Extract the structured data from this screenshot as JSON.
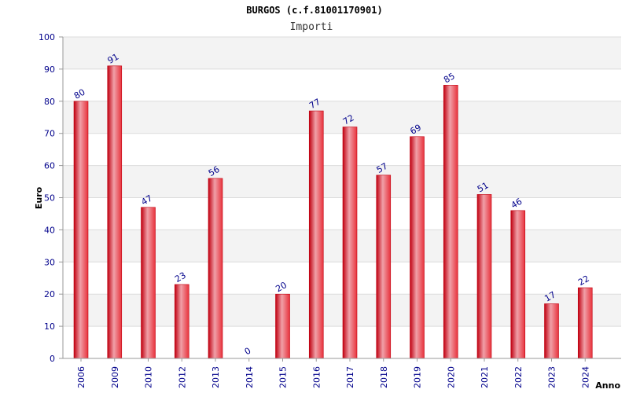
{
  "colors": {
    "bar_edge": "#c00010",
    "bar_light": "#f0a0a8",
    "bar_mid": "#e8323c",
    "tick_text": "#00008b",
    "band": "#f3f3f3"
  },
  "chart_data": {
    "type": "bar",
    "title": "BURGOS (c.f.81001170901)",
    "subtitle": "Importi",
    "xlabel": "Anno",
    "ylabel": "Euro",
    "ylim": [
      0,
      100
    ],
    "yticks": [
      0,
      10,
      20,
      30,
      40,
      50,
      60,
      70,
      80,
      90,
      100
    ],
    "grid": true,
    "categories": [
      "2006",
      "2009",
      "2010",
      "2012",
      "2013",
      "2014",
      "2015",
      "2016",
      "2017",
      "2018",
      "2019",
      "2020",
      "2021",
      "2022",
      "2023",
      "2024"
    ],
    "values": [
      80,
      91,
      47,
      23,
      56,
      0,
      20,
      77,
      72,
      57,
      69,
      85,
      51,
      46,
      17,
      22
    ]
  }
}
